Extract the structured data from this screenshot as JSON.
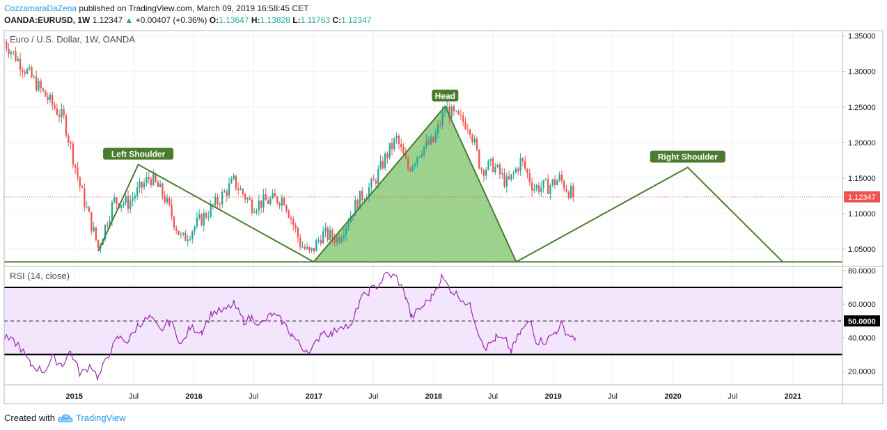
{
  "header": {
    "author": "CozzamaraDaZena",
    "published_text": "published on TradingView.com, March 09, 2019 16:58:45 CET",
    "symbol": "OANDA:EURUSD, 1W",
    "last": "1.12347",
    "change": "+0.00407 (+0.36%)",
    "o_label": "O:",
    "o_value": "1.13647",
    "h_label": "H:",
    "h_value": "1.13828",
    "l_label": "L:",
    "l_value": "1.11763",
    "c_label": "C:",
    "c_value": "1.12347"
  },
  "footer": {
    "created_with": "Created with",
    "brand": "TradingView"
  },
  "colors": {
    "bull": "#26a69a",
    "bear": "#ef5350",
    "pattern": "#4a7c2f",
    "head_fill": "#8bc97a",
    "rsi_line": "#9c27b0",
    "rsi_band": "#f3e5fb",
    "last_price": "#ef5350",
    "grid": "#eef0f3",
    "border": "#b2b5be"
  },
  "icons": {
    "up_arrow": "triangle-up-icon",
    "logo": "cloud-logo-icon"
  },
  "chart_data": [
    {
      "type": "candlestick",
      "title": "Euro / U.S. Dollar, 1W, OANDA",
      "y_ticks": [
        "1.35000",
        "1.30000",
        "1.25000",
        "1.20000",
        "1.15000",
        "1.10000",
        "1.05000"
      ],
      "ylim": [
        1.0275,
        1.3575
      ],
      "x_tick_labels": [
        "2015",
        "Jul",
        "2016",
        "Jul",
        "2017",
        "Jul",
        "2018",
        "Jul",
        "2019",
        "Jul",
        "2020",
        "Jul",
        "2021"
      ],
      "x_tick_dates": [
        "2015-01-01",
        "2015-07-01",
        "2016-01-01",
        "2016-07-01",
        "2017-01-01",
        "2017-07-01",
        "2018-01-01",
        "2018-07-01",
        "2019-01-01",
        "2019-07-01",
        "2020-01-01",
        "2020-07-01",
        "2021-01-01"
      ],
      "xlim": [
        "2014-06-01",
        "2021-06-01"
      ],
      "last_price_label": "1.12347",
      "last_price": 1.12347,
      "grid": true,
      "close_path": [
        [
          "2014-06-01",
          1.342
        ],
        [
          "2014-08-01",
          1.305
        ],
        [
          "2014-10-01",
          1.268
        ],
        [
          "2014-12-01",
          1.232
        ],
        [
          "2015-01-20",
          1.135
        ],
        [
          "2015-03-15",
          1.052
        ],
        [
          "2015-05-01",
          1.118
        ],
        [
          "2015-06-15",
          1.115
        ],
        [
          "2015-08-20",
          1.152
        ],
        [
          "2015-10-01",
          1.125
        ],
        [
          "2015-11-25",
          1.062
        ],
        [
          "2016-01-15",
          1.088
        ],
        [
          "2016-03-15",
          1.118
        ],
        [
          "2016-05-01",
          1.145
        ],
        [
          "2016-06-25",
          1.112
        ],
        [
          "2016-08-15",
          1.118
        ],
        [
          "2016-10-01",
          1.122
        ],
        [
          "2016-11-20",
          1.058
        ],
        [
          "2016-12-20",
          1.042
        ],
        [
          "2017-01-25",
          1.071
        ],
        [
          "2017-03-15",
          1.065
        ],
        [
          "2017-05-15",
          1.118
        ],
        [
          "2017-07-01",
          1.142
        ],
        [
          "2017-08-10",
          1.182
        ],
        [
          "2017-09-10",
          1.205
        ],
        [
          "2017-10-15",
          1.163
        ],
        [
          "2017-11-25",
          1.192
        ],
        [
          "2017-12-31",
          1.201
        ],
        [
          "2018-02-05",
          1.248
        ],
        [
          "2018-03-20",
          1.232
        ],
        [
          "2018-04-20",
          1.225
        ],
        [
          "2018-05-25",
          1.163
        ],
        [
          "2018-07-01",
          1.168
        ],
        [
          "2018-08-15",
          1.141
        ],
        [
          "2018-09-25",
          1.175
        ],
        [
          "2018-11-01",
          1.137
        ],
        [
          "2018-12-15",
          1.138
        ],
        [
          "2019-01-20",
          1.149
        ],
        [
          "2019-02-15",
          1.133
        ],
        [
          "2019-03-09",
          1.12347
        ]
      ],
      "annotations": [
        {
          "label": "Left Shoulder",
          "date": "2015-07-15",
          "price": 1.169
        },
        {
          "label": "Head",
          "date": "2018-02-05",
          "price": 1.251
        },
        {
          "label": "Right Shoulder",
          "date": "2020-02-15",
          "price": 1.165
        }
      ],
      "pattern_lines": [
        [
          [
            "2015-03-15",
            1.047
          ],
          [
            "2015-07-15",
            1.169
          ],
          [
            "2016-12-31",
            1.032
          ]
        ],
        [
          [
            "2016-12-31",
            1.032
          ],
          [
            "2018-02-05",
            1.251
          ],
          [
            "2018-09-10",
            1.032
          ]
        ],
        [
          [
            "2018-09-10",
            1.032
          ],
          [
            "2020-02-15",
            1.165
          ],
          [
            "2020-12-01",
            1.032
          ]
        ]
      ],
      "neckline": [
        [
          "2014-06-01",
          1.032
        ],
        [
          "2021-06-01",
          1.032
        ]
      ]
    },
    {
      "type": "line",
      "title": "RSI (14, close)",
      "y_ticks": [
        "80.0000",
        "60.0000",
        "40.0000",
        "20.0000"
      ],
      "ylim": [
        12,
        82
      ],
      "bands": [
        70,
        50,
        30
      ],
      "mid_label": "50.0000",
      "series": [
        {
          "name": "RSI",
          "points": [
            [
              "2014-06-01",
              40
            ],
            [
              "2014-07-15",
              36
            ],
            [
              "2014-08-20",
              24
            ],
            [
              "2014-10-01",
              20
            ],
            [
              "2014-10-25",
              28
            ],
            [
              "2014-11-25",
              24
            ],
            [
              "2014-12-20",
              32
            ],
            [
              "2015-01-20",
              18
            ],
            [
              "2015-02-20",
              24
            ],
            [
              "2015-03-15",
              16
            ],
            [
              "2015-04-15",
              30
            ],
            [
              "2015-05-15",
              40
            ],
            [
              "2015-06-15",
              38
            ],
            [
              "2015-07-15",
              48
            ],
            [
              "2015-08-20",
              52
            ],
            [
              "2015-09-20",
              44
            ],
            [
              "2015-10-20",
              50
            ],
            [
              "2015-11-25",
              36
            ],
            [
              "2015-12-20",
              46
            ],
            [
              "2016-01-25",
              44
            ],
            [
              "2016-02-25",
              55
            ],
            [
              "2016-04-01",
              56
            ],
            [
              "2016-05-01",
              60
            ],
            [
              "2016-06-01",
              50
            ],
            [
              "2016-06-25",
              52
            ],
            [
              "2016-07-25",
              48
            ],
            [
              "2016-08-25",
              54
            ],
            [
              "2016-09-25",
              50
            ],
            [
              "2016-10-25",
              42
            ],
            [
              "2016-11-25",
              34
            ],
            [
              "2016-12-25",
              32
            ],
            [
              "2017-01-25",
              44
            ],
            [
              "2017-02-25",
              42
            ],
            [
              "2017-03-25",
              48
            ],
            [
              "2017-04-25",
              46
            ],
            [
              "2017-05-20",
              62
            ],
            [
              "2017-06-20",
              68
            ],
            [
              "2017-07-20",
              72
            ],
            [
              "2017-08-10",
              78
            ],
            [
              "2017-09-10",
              76
            ],
            [
              "2017-10-10",
              64
            ],
            [
              "2017-10-25",
              52
            ],
            [
              "2017-11-25",
              58
            ],
            [
              "2017-12-25",
              64
            ],
            [
              "2018-01-25",
              76
            ],
            [
              "2018-02-25",
              68
            ],
            [
              "2018-03-25",
              64
            ],
            [
              "2018-04-25",
              58
            ],
            [
              "2018-05-20",
              42
            ],
            [
              "2018-06-10",
              34
            ],
            [
              "2018-07-10",
              40
            ],
            [
              "2018-08-10",
              38
            ],
            [
              "2018-08-25",
              32
            ],
            [
              "2018-09-25",
              44
            ],
            [
              "2018-10-25",
              50
            ],
            [
              "2018-11-10",
              38
            ],
            [
              "2018-12-10",
              38
            ],
            [
              "2019-01-10",
              44
            ],
            [
              "2019-01-25",
              48
            ],
            [
              "2019-02-15",
              42
            ],
            [
              "2019-03-09",
              40
            ]
          ]
        }
      ]
    }
  ]
}
